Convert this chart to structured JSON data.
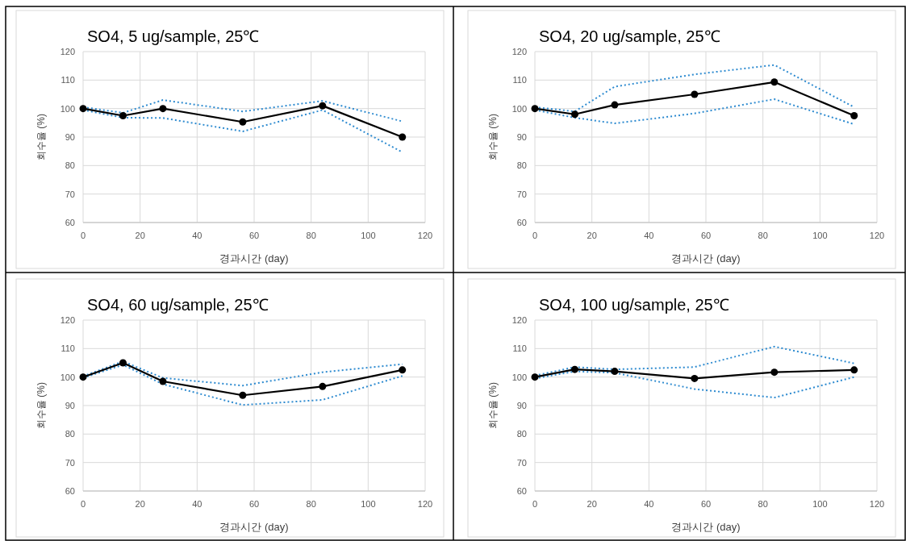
{
  "chart_data": [
    {
      "type": "line",
      "title": "SO4, 5 ug/sample, 25℃",
      "xlabel": "경과시간 (day)",
      "ylabel": "회수율 (%)",
      "x": [
        0,
        14,
        28,
        56,
        84,
        112
      ],
      "xlim": [
        0,
        120
      ],
      "xticks": [
        0,
        20,
        40,
        60,
        80,
        100,
        120
      ],
      "ylim": [
        60,
        120
      ],
      "yticks": [
        60,
        70,
        80,
        90,
        100,
        110,
        120
      ],
      "grid": true,
      "marker": "circle",
      "line_style": "solid",
      "series": [
        {
          "color": "#2e8bd0",
          "line_style": "dotted",
          "marker": "none",
          "values": [
            99.5,
            96.8,
            96.7,
            92,
            99.5,
            84.7
          ]
        },
        {
          "color": "#2e8bd0",
          "line_style": "dotted",
          "marker": "none",
          "values": [
            100.5,
            98.5,
            103,
            99,
            102.7,
            95.5
          ]
        },
        {
          "color": "#000000",
          "values": [
            100,
            97.5,
            100,
            95.3,
            101,
            90
          ]
        }
      ]
    },
    {
      "type": "line",
      "title": "SO4, 20 ug/sample, 25℃",
      "xlabel": "경과시간 (day)",
      "ylabel": "회수율 (%)",
      "x": [
        0,
        14,
        28,
        56,
        84,
        112
      ],
      "xlim": [
        0,
        120
      ],
      "xticks": [
        0,
        20,
        40,
        60,
        80,
        100,
        120
      ],
      "ylim": [
        60,
        120
      ],
      "yticks": [
        60,
        70,
        80,
        90,
        100,
        110,
        120
      ],
      "grid": true,
      "marker": "circle",
      "line_style": "solid",
      "series": [
        {
          "color": "#2e8bd0",
          "line_style": "dotted",
          "marker": "none",
          "values": [
            99.5,
            96.8,
            94.8,
            98.3,
            103.3,
            94.5
          ]
        },
        {
          "color": "#2e8bd0",
          "line_style": "dotted",
          "marker": "none",
          "values": [
            100.5,
            99,
            107.7,
            112,
            115.3,
            100.5
          ]
        },
        {
          "color": "#000000",
          "values": [
            100,
            98,
            101.3,
            105,
            109.3,
            97.5
          ]
        }
      ]
    },
    {
      "type": "line",
      "title": "SO4, 60 ug/sample, 25℃",
      "xlabel": "경과시간 (day)",
      "ylabel": "회수율 (%)",
      "x": [
        0,
        14,
        28,
        56,
        84,
        112
      ],
      "xlim": [
        0,
        120
      ],
      "xticks": [
        0,
        20,
        40,
        60,
        80,
        100,
        120
      ],
      "ylim": [
        60,
        120
      ],
      "yticks": [
        60,
        70,
        80,
        90,
        100,
        110,
        120
      ],
      "grid": true,
      "marker": "circle",
      "line_style": "solid",
      "series": [
        {
          "color": "#2e8bd0",
          "line_style": "dotted",
          "marker": "none",
          "values": [
            99.7,
            104.3,
            97.5,
            90.2,
            92,
            100.4
          ]
        },
        {
          "color": "#2e8bd0",
          "line_style": "dotted",
          "marker": "none",
          "values": [
            100.3,
            105.5,
            99.7,
            97,
            101.7,
            104.5
          ]
        },
        {
          "color": "#000000",
          "values": [
            100,
            105,
            98.5,
            93.6,
            96.7,
            102.5
          ]
        }
      ]
    },
    {
      "type": "line",
      "title": "SO4, 100 ug/sample, 25℃",
      "xlabel": "경과시간 (day)",
      "ylabel": "회수율 (%)",
      "x": [
        0,
        14,
        28,
        56,
        84,
        112
      ],
      "xlim": [
        0,
        120
      ],
      "xticks": [
        0,
        20,
        40,
        60,
        80,
        100,
        120
      ],
      "ylim": [
        60,
        120
      ],
      "yticks": [
        60,
        70,
        80,
        90,
        100,
        110,
        120
      ],
      "grid": true,
      "marker": "circle",
      "line_style": "solid",
      "series": [
        {
          "color": "#2e8bd0",
          "line_style": "dotted",
          "marker": "none",
          "values": [
            99.5,
            102,
            101.5,
            95.8,
            92.8,
            100
          ]
        },
        {
          "color": "#2e8bd0",
          "line_style": "dotted",
          "marker": "none",
          "values": [
            100.5,
            103.5,
            102.7,
            103.5,
            110.7,
            104.8
          ]
        },
        {
          "color": "#000000",
          "values": [
            100,
            102.7,
            102,
            99.5,
            101.7,
            102.5
          ]
        }
      ]
    }
  ]
}
